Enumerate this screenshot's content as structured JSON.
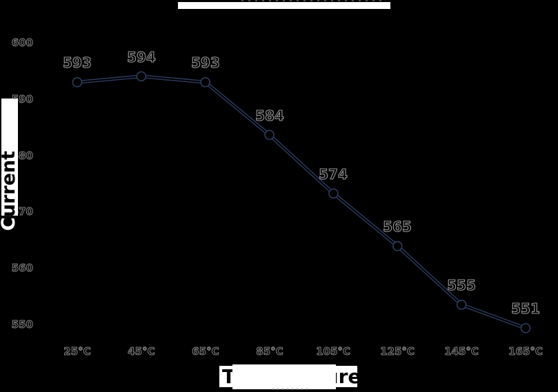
{
  "chart_data": {
    "type": "line",
    "title": "",
    "title_obscured": true,
    "xlabel": "Temperature",
    "ylabel": "Current",
    "categories": [
      "25°C",
      "45°C",
      "65°C",
      "85°C",
      "105°C",
      "125°C",
      "145°C",
      "165°C"
    ],
    "values": [
      593,
      594,
      593,
      584,
      574,
      565,
      555,
      551
    ],
    "point_labels": [
      "593",
      "594",
      "593",
      "584",
      "574",
      "565",
      "555",
      "551"
    ],
    "yticks": [
      600,
      590,
      580,
      570,
      560,
      550
    ],
    "ylim": [
      548,
      602
    ],
    "grid": false,
    "legend": false,
    "colors": {
      "background": "#000000",
      "line": "#2e3c60",
      "marker_fill": "#000000",
      "marker_stroke": "#2e3c60",
      "value_label_outline": "#9a9a9a",
      "tick_label_outline": "#858585",
      "redaction_box": "#ffffff"
    }
  }
}
